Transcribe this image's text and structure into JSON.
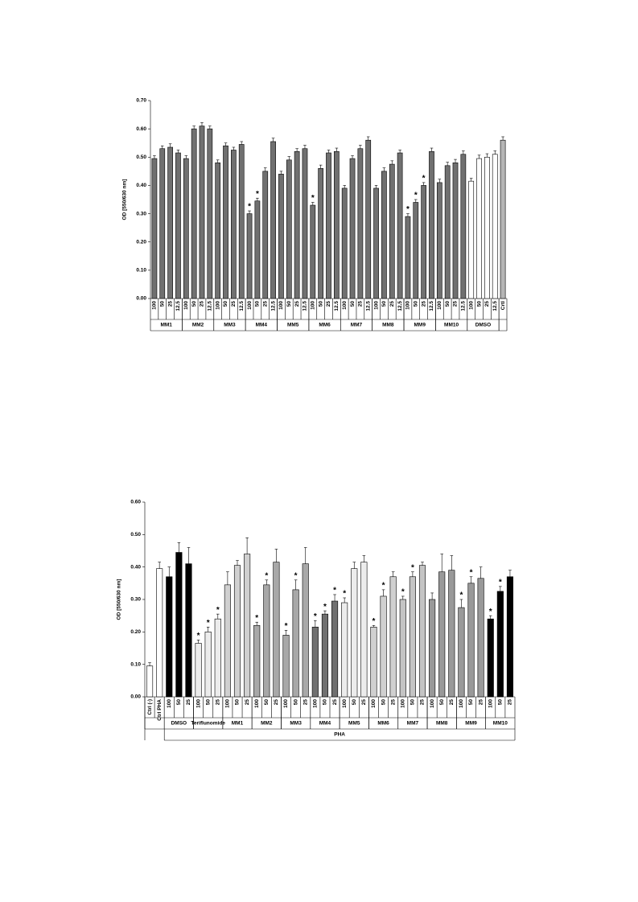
{
  "chart_data": [
    {
      "type": "bar",
      "y_label": "OD [550/630 nm]",
      "ylim": [
        0,
        0.7
      ],
      "yticks": [
        {
          "value": 0,
          "label": "0.00"
        },
        {
          "value": 0.1,
          "label": "0.10"
        },
        {
          "value": 0.2,
          "label": "0.20"
        },
        {
          "value": 0.3,
          "label": "0.30"
        },
        {
          "value": 0.4,
          "label": "0.40"
        },
        {
          "value": 0.5,
          "label": "0.50"
        },
        {
          "value": 0.6,
          "label": "0.60"
        },
        {
          "value": 0.7,
          "label": "0.70"
        }
      ],
      "groups": [
        {
          "name": "MM1",
          "color": "#707070",
          "categories": [
            "100",
            "50",
            "25",
            "12.5"
          ],
          "values": [
            0.495,
            0.53,
            0.535,
            0.515
          ],
          "errors": [
            0.01,
            0.01,
            0.012,
            0.01
          ]
        },
        {
          "name": "MM2",
          "color": "#707070",
          "categories": [
            "100",
            "50",
            "25",
            "12.5"
          ],
          "values": [
            0.495,
            0.6,
            0.61,
            0.6
          ],
          "errors": [
            0.01,
            0.01,
            0.012,
            0.01
          ]
        },
        {
          "name": "MM3",
          "color": "#707070",
          "categories": [
            "100",
            "50",
            "25",
            "12.5"
          ],
          "values": [
            0.48,
            0.54,
            0.525,
            0.545
          ],
          "errors": [
            0.01,
            0.01,
            0.01,
            0.01
          ]
        },
        {
          "name": "MM4",
          "color": "#707070",
          "categories": [
            "100",
            "50",
            "25",
            "12.5"
          ],
          "values": [
            0.3,
            0.345,
            0.45,
            0.555
          ],
          "errors": [
            0.01,
            0.01,
            0.012,
            0.012
          ],
          "stars": [
            "*",
            "*",
            null,
            null
          ]
        },
        {
          "name": "MM5",
          "color": "#707070",
          "categories": [
            "100",
            "50",
            "25",
            "12.5"
          ],
          "values": [
            0.44,
            0.49,
            0.52,
            0.53
          ],
          "errors": [
            0.01,
            0.012,
            0.01,
            0.012
          ]
        },
        {
          "name": "MM6",
          "color": "#707070",
          "categories": [
            "100",
            "50",
            "25",
            "12.5"
          ],
          "values": [
            0.33,
            0.46,
            0.515,
            0.52
          ],
          "errors": [
            0.01,
            0.012,
            0.01,
            0.012
          ],
          "stars": [
            "*",
            null,
            null,
            null
          ]
        },
        {
          "name": "MM7",
          "color": "#707070",
          "categories": [
            "100",
            "50",
            "25",
            "12.5"
          ],
          "values": [
            0.39,
            0.495,
            0.53,
            0.56
          ],
          "errors": [
            0.01,
            0.01,
            0.012,
            0.012
          ]
        },
        {
          "name": "MM8",
          "color": "#707070",
          "categories": [
            "100",
            "50",
            "25",
            "12.5"
          ],
          "values": [
            0.39,
            0.45,
            0.475,
            0.515
          ],
          "errors": [
            0.01,
            0.012,
            0.012,
            0.01
          ]
        },
        {
          "name": "MM9",
          "color": "#707070",
          "categories": [
            "100",
            "50",
            "25",
            "12.5"
          ],
          "values": [
            0.29,
            0.34,
            0.4,
            0.52
          ],
          "errors": [
            0.01,
            0.01,
            0.01,
            0.012
          ],
          "stars": [
            "*",
            "*",
            "*",
            null
          ]
        },
        {
          "name": "MM10",
          "color": "#707070",
          "categories": [
            "100",
            "50",
            "25",
            "12.5"
          ],
          "values": [
            0.41,
            0.47,
            0.48,
            0.51
          ],
          "errors": [
            0.012,
            0.012,
            0.012,
            0.012
          ]
        },
        {
          "name": "DMSO",
          "color": "#ffffff",
          "categories": [
            "100",
            "50",
            "25",
            "12.5"
          ],
          "values": [
            0.415,
            0.495,
            0.5,
            0.51
          ],
          "errors": [
            0.01,
            0.012,
            0.012,
            0.012
          ]
        },
        {
          "color": "#b5b5b5",
          "categories": [
            "Crtl"
          ],
          "values": [
            0.56
          ],
          "errors": [
            0.012
          ]
        }
      ]
    },
    {
      "type": "bar",
      "y_label": "OD [550/630 nm]",
      "ylim": [
        0,
        0.6
      ],
      "yticks": [
        {
          "value": 0,
          "label": "0.00"
        },
        {
          "value": 0.1,
          "label": "0.10"
        },
        {
          "value": 0.2,
          "label": "0.20"
        },
        {
          "value": 0.3,
          "label": "0.30"
        },
        {
          "value": 0.4,
          "label": "0.40"
        },
        {
          "value": 0.5,
          "label": "0.50"
        },
        {
          "value": 0.6,
          "label": "0.60"
        }
      ],
      "groups": [
        {
          "color": "#ffffff",
          "categories": [
            "Ctrl (-)",
            "Ctrl PHA"
          ],
          "values": [
            0.095,
            0.395
          ],
          "errors": [
            0.01,
            0.02
          ]
        },
        {
          "name": "PHA",
          "groups": [
            {
              "name": "DMSO",
              "color": "#000000",
              "categories": [
                "100",
                "50",
                "25"
              ],
              "values": [
                0.37,
                0.445,
                0.41
              ],
              "errors": [
                0.03,
                0.03,
                0.05
              ]
            },
            {
              "name": "Teriflunomide",
              "color": "#ececec",
              "categories": [
                "100",
                "50",
                "25"
              ],
              "values": [
                0.165,
                0.2,
                0.24
              ],
              "errors": [
                0.01,
                0.015,
                0.015
              ],
              "stars": [
                "*",
                "*",
                "*"
              ]
            },
            {
              "name": "MM1",
              "color": "#d0d0d0",
              "categories": [
                "100",
                "50",
                "25"
              ],
              "values": [
                0.345,
                0.405,
                0.44
              ],
              "errors": [
                0.04,
                0.015,
                0.05
              ]
            },
            {
              "name": "MM2",
              "color": "#a8a8a8",
              "categories": [
                "100",
                "50",
                "25"
              ],
              "values": [
                0.22,
                0.345,
                0.415
              ],
              "errors": [
                0.01,
                0.015,
                0.04
              ],
              "stars": [
                "*",
                "*",
                null
              ]
            },
            {
              "name": "MM3",
              "color": "#a8a8a8",
              "categories": [
                "100",
                "50",
                "25"
              ],
              "values": [
                0.19,
                0.33,
                0.41
              ],
              "errors": [
                0.015,
                0.03,
                0.05
              ],
              "stars": [
                "*",
                "*",
                null
              ]
            },
            {
              "name": "MM4",
              "color": "#707070",
              "categories": [
                "100",
                "50",
                "25"
              ],
              "values": [
                0.215,
                0.255,
                0.295
              ],
              "errors": [
                0.02,
                0.01,
                0.02
              ],
              "stars": [
                "*",
                "*",
                "*"
              ]
            },
            {
              "name": "MM5",
              "color": "#ececec",
              "categories": [
                "100",
                "50",
                "25"
              ],
              "values": [
                0.29,
                0.395,
                0.415
              ],
              "errors": [
                0.015,
                0.02,
                0.02
              ],
              "stars": [
                "*",
                null,
                null
              ]
            },
            {
              "name": "MM6",
              "color": "#d0d0d0",
              "categories": [
                "100",
                "50",
                "25"
              ],
              "values": [
                0.215,
                0.31,
                0.37
              ],
              "errors": [
                0.005,
                0.02,
                0.015
              ],
              "stars": [
                "*",
                "*",
                null
              ]
            },
            {
              "name": "MM7",
              "color": "#c4c4c4",
              "categories": [
                "100",
                "50",
                "25"
              ],
              "values": [
                0.3,
                0.37,
                0.405
              ],
              "errors": [
                0.01,
                0.015,
                0.01
              ],
              "stars": [
                "*",
                "*",
                null
              ]
            },
            {
              "name": "MM8",
              "color": "#999999",
              "categories": [
                "100",
                "50",
                "25"
              ],
              "values": [
                0.3,
                0.385,
                0.39
              ],
              "errors": [
                0.02,
                0.055,
                0.045
              ]
            },
            {
              "name": "MM9",
              "color": "#999999",
              "categories": [
                "100",
                "50",
                "25"
              ],
              "values": [
                0.275,
                0.35,
                0.365
              ],
              "errors": [
                0.025,
                0.02,
                0.035
              ],
              "stars": [
                "*",
                "*",
                null
              ]
            },
            {
              "name": "MM10",
              "color": "#000000",
              "categories": [
                "100",
                "50",
                "25"
              ],
              "values": [
                0.24,
                0.325,
                0.37
              ],
              "errors": [
                0.01,
                0.015,
                0.02
              ],
              "stars": [
                "*",
                "*",
                null
              ]
            }
          ]
        }
      ]
    }
  ]
}
